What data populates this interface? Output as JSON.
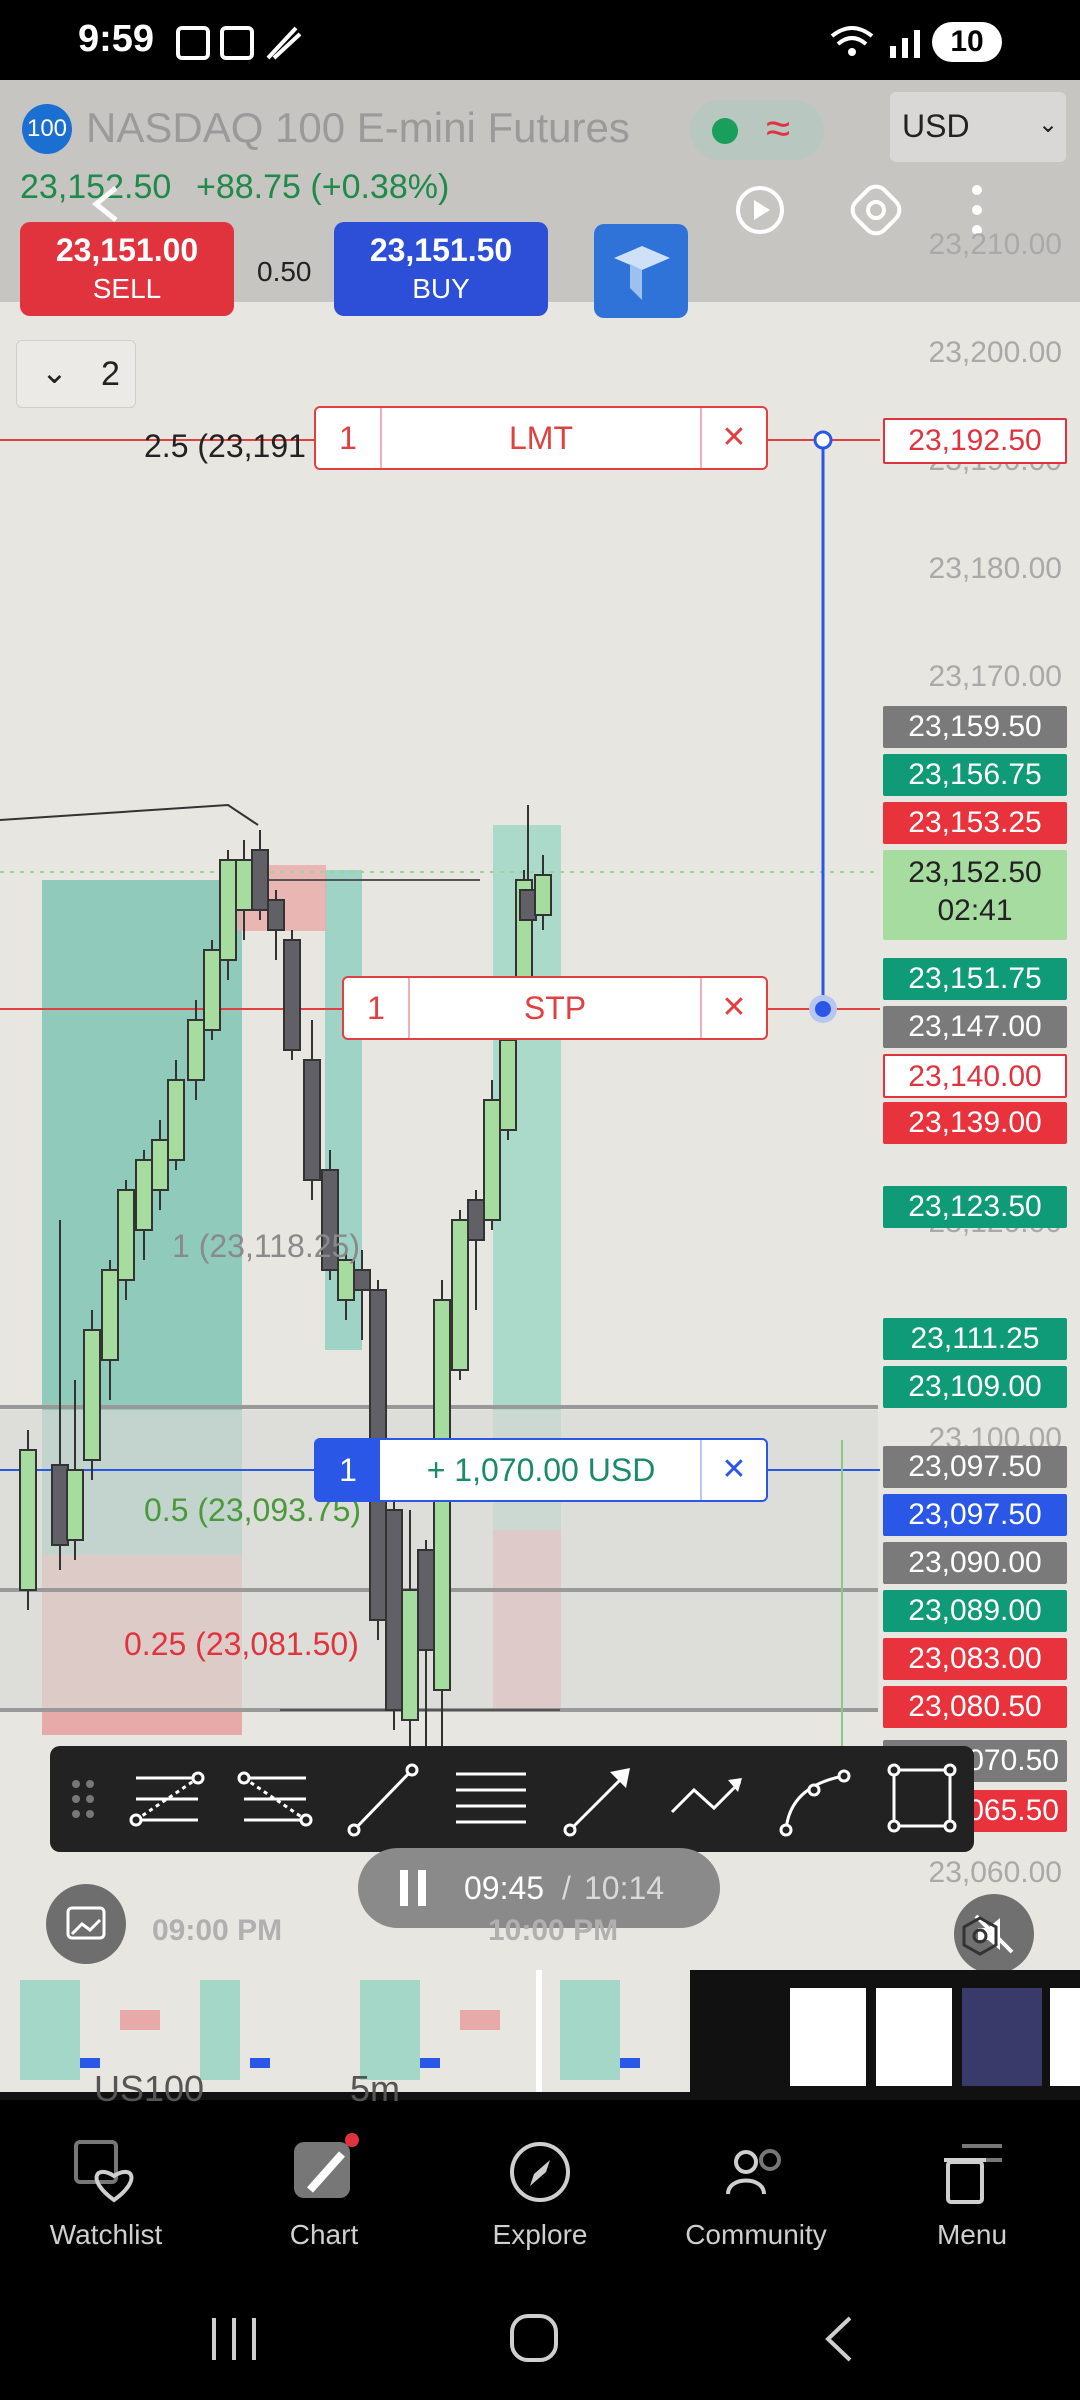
{
  "status_bar": {
    "time": "9:59",
    "battery": "10"
  },
  "symbol": {
    "badge": "100",
    "name": "NASDAQ 100 E-mini Futures",
    "price": "23,152.50",
    "change": "+88.75 (+0.38%)",
    "currency": "USD"
  },
  "trade": {
    "sell_price": "23,151.00",
    "sell_label": "SELL",
    "spread": "0.50",
    "buy_price": "23,151.50",
    "buy_label": "BUY"
  },
  "layers": {
    "count": "2"
  },
  "orders": {
    "limit": {
      "qty": "1",
      "label": "LMT",
      "price": "23,192.50"
    },
    "stop": {
      "qty": "1",
      "label": "STP"
    },
    "position": {
      "qty": "1",
      "pnl": "+ 1,070.00 USD"
    }
  },
  "fib_labels": {
    "f25": "2.5 (23,191",
    "f1": "1 (23,118.25)",
    "f05": "0.5 (23,093.75)",
    "f025": "0.25 (23,081.50)"
  },
  "axis_labels": [
    "23,210.00",
    "23,200.00",
    "23,190.00",
    "23,180.00",
    "23,170.00",
    "23,120.00",
    "23,100.00",
    "23,060.00"
  ],
  "price_tags": {
    "t1": "23,159.50",
    "t2": "23,156.75",
    "t3": "23,153.25",
    "t4_price": "23,152.50",
    "t4_timer": "02:41",
    "t5": "23,151.75",
    "t6": "23,147.00",
    "t7": "23,140.00",
    "t8": "23,139.00",
    "t9": "23,123.50",
    "t10": "23,111.25",
    "t11": "23,109.00",
    "t12": "23,097.50",
    "t13": "23,097.50",
    "t14": "23,090.00",
    "t15": "23,089.00",
    "t16": "23,083.00",
    "t17": "23,080.50",
    "t18": "070.50",
    "t19": "065.50"
  },
  "time_axis": {
    "t1": "09:00 PM",
    "t2": "10:00 PM"
  },
  "video": {
    "current": "09:45",
    "separator": "/",
    "total": "10:14"
  },
  "ghost_text": {
    "symbol": "US100",
    "interval": "5m"
  },
  "bottom_nav": [
    {
      "label": "Watchlist",
      "icon": "watchlist-heart-icon"
    },
    {
      "label": "Chart",
      "icon": "chart-pencil-icon"
    },
    {
      "label": "Explore",
      "icon": "compass-icon"
    },
    {
      "label": "Community",
      "icon": "community-people-icon"
    },
    {
      "label": "Menu",
      "icon": "menu-trash-icon"
    }
  ],
  "colors": {
    "sell": "#e0333e",
    "buy": "#2d4ed6",
    "green_tag": "#0f9a78",
    "red_tag": "#e8323c",
    "gray_tag": "#7a7a7a",
    "blue_tag": "#2b57e6",
    "bull_candle": "#a7dca0",
    "bear_candle": "#606066"
  }
}
